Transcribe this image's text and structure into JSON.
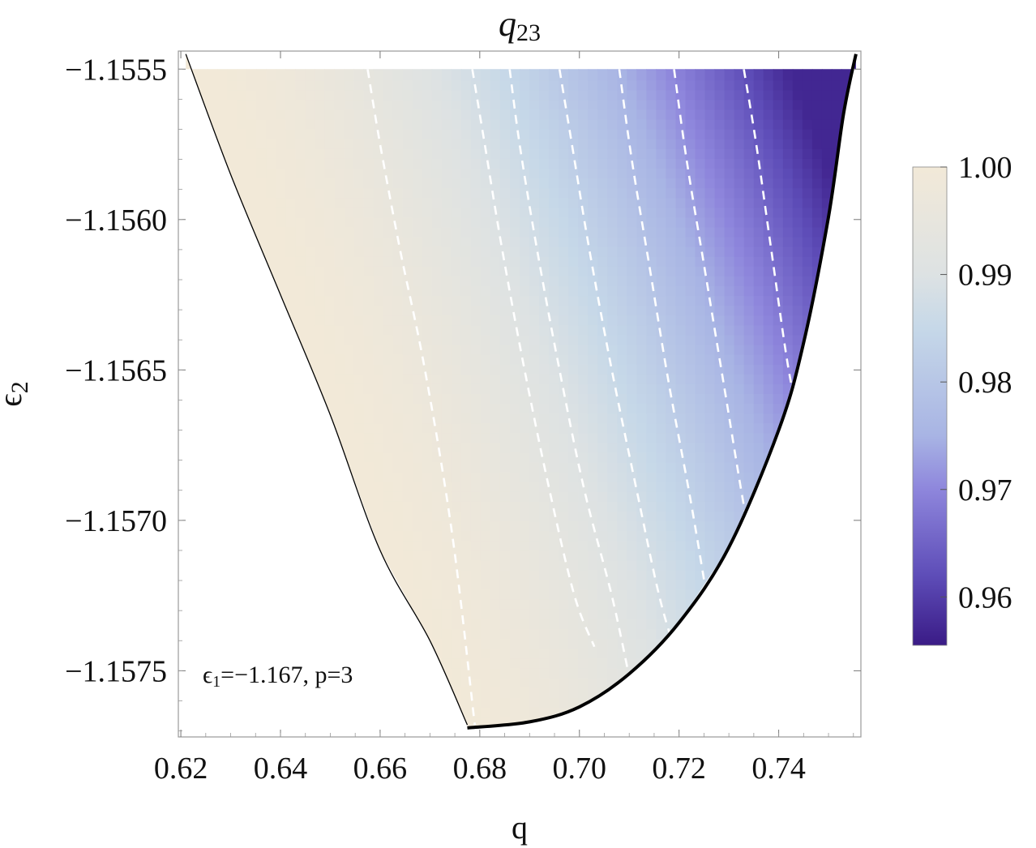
{
  "chart_data": {
    "type": "heatmap",
    "title": {
      "main": "q",
      "sub": "23"
    },
    "xlabel": "q",
    "ylabel": {
      "main": "ϵ",
      "sub": "2"
    },
    "xlim": [
      0.6195,
      0.7565
    ],
    "ylim": [
      -1.15772,
      -1.15544
    ],
    "x_ticks": [
      {
        "value": 0.62,
        "label": "0.62"
      },
      {
        "value": 0.64,
        "label": "0.64"
      },
      {
        "value": 0.66,
        "label": "0.66"
      },
      {
        "value": 0.68,
        "label": "0.68"
      },
      {
        "value": 0.7,
        "label": "0.70"
      },
      {
        "value": 0.72,
        "label": "0.72"
      },
      {
        "value": 0.74,
        "label": "0.74"
      }
    ],
    "y_ticks": [
      {
        "value": -1.1555,
        "label": "−1.1555"
      },
      {
        "value": -1.156,
        "label": "−1.1560"
      },
      {
        "value": -1.1565,
        "label": "−1.1565"
      },
      {
        "value": -1.157,
        "label": "−1.1570"
      },
      {
        "value": -1.1575,
        "label": "−1.1575"
      }
    ],
    "annotation": {
      "sym": "ϵ",
      "sub": "1",
      "rest": "=−1.167, p=3"
    },
    "region": {
      "y_top": -1.1555,
      "left_boundary": [
        [
          0.621,
          -1.15545
        ],
        [
          0.63,
          -1.15585
        ],
        [
          0.64,
          -1.15625
        ],
        [
          0.65,
          -1.15665
        ],
        [
          0.66,
          -1.1571
        ],
        [
          0.67,
          -1.1574
        ],
        [
          0.6775,
          -1.15768
        ]
      ],
      "right_boundary": [
        [
          0.6775,
          -1.15769
        ],
        [
          0.69,
          -1.15767
        ],
        [
          0.7,
          -1.15762
        ],
        [
          0.71,
          -1.15751
        ],
        [
          0.72,
          -1.15734
        ],
        [
          0.73,
          -1.15709
        ],
        [
          0.74,
          -1.1567
        ],
        [
          0.745,
          -1.15641
        ],
        [
          0.75,
          -1.15599
        ],
        [
          0.753,
          -1.15565
        ],
        [
          0.7555,
          -1.15545
        ]
      ]
    },
    "contours": [
      [
        [
          0.6575,
          -1.1555
        ],
        [
          0.66,
          -1.15575
        ],
        [
          0.664,
          -1.1561
        ],
        [
          0.669,
          -1.1565
        ],
        [
          0.6745,
          -1.15705
        ],
        [
          0.679,
          -1.15768
        ]
      ],
      [
        [
          0.6785,
          -1.1555
        ],
        [
          0.681,
          -1.15575
        ],
        [
          0.6845,
          -1.1561
        ],
        [
          0.689,
          -1.1565
        ],
        [
          0.694,
          -1.1569
        ],
        [
          0.699,
          -1.15725
        ],
        [
          0.703,
          -1.15742
        ]
      ],
      [
        [
          0.686,
          -1.1555
        ],
        [
          0.688,
          -1.15575
        ],
        [
          0.6915,
          -1.1561
        ],
        [
          0.696,
          -1.1565
        ],
        [
          0.701,
          -1.1569
        ],
        [
          0.7065,
          -1.15725
        ],
        [
          0.71,
          -1.15752
        ]
      ],
      [
        [
          0.696,
          -1.1555
        ],
        [
          0.6985,
          -1.15575
        ],
        [
          0.702,
          -1.1561
        ],
        [
          0.7065,
          -1.1565
        ],
        [
          0.7115,
          -1.1569
        ],
        [
          0.716,
          -1.15725
        ],
        [
          0.7195,
          -1.15745
        ]
      ],
      [
        [
          0.708,
          -1.1555
        ],
        [
          0.7105,
          -1.1558
        ],
        [
          0.714,
          -1.15615
        ],
        [
          0.718,
          -1.15655
        ],
        [
          0.7225,
          -1.15695
        ],
        [
          0.727,
          -1.1574
        ]
      ],
      [
        [
          0.719,
          -1.1555
        ],
        [
          0.7215,
          -1.1558
        ],
        [
          0.725,
          -1.15615
        ],
        [
          0.729,
          -1.15655
        ],
        [
          0.733,
          -1.15695
        ],
        [
          0.735,
          -1.1571
        ]
      ],
      [
        [
          0.733,
          -1.1555
        ],
        [
          0.7355,
          -1.15575
        ],
        [
          0.7385,
          -1.1561
        ],
        [
          0.742,
          -1.1565
        ],
        [
          0.7445,
          -1.15668
        ]
      ]
    ],
    "colorbar": {
      "range": [
        0.9555,
        1.0
      ],
      "ticks": [
        {
          "value": 1.0,
          "label": "1.00"
        },
        {
          "value": 0.99,
          "label": "0.99"
        },
        {
          "value": 0.98,
          "label": "0.98"
        },
        {
          "value": 0.97,
          "label": "0.97"
        },
        {
          "value": 0.96,
          "label": "0.96"
        }
      ],
      "stops": [
        {
          "value": 1.0,
          "color": "#f2e9d8"
        },
        {
          "value": 0.99,
          "color": "#dde2e3"
        },
        {
          "value": 0.985,
          "color": "#c6d8e8"
        },
        {
          "value": 0.975,
          "color": "#a8b4e4"
        },
        {
          "value": 0.97,
          "color": "#8e86dc"
        },
        {
          "value": 0.962,
          "color": "#5e4db8"
        },
        {
          "value": 0.9555,
          "color": "#3a1b86"
        }
      ]
    },
    "grid": false,
    "legend": "colorbar-right"
  }
}
